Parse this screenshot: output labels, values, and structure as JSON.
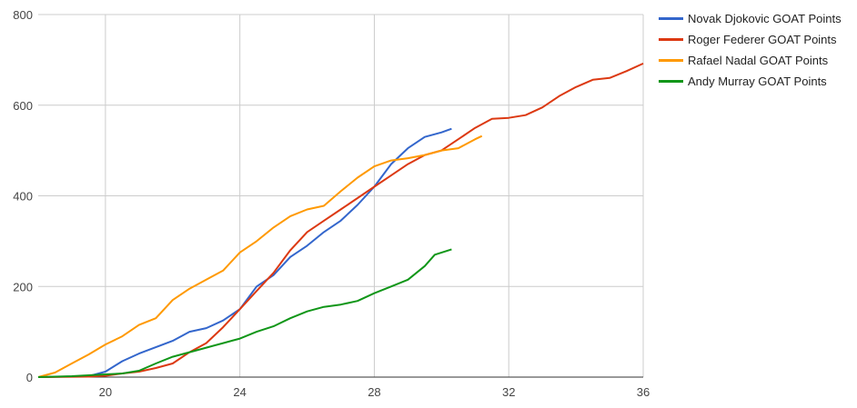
{
  "chart_data": {
    "type": "line",
    "title": "",
    "xlabel": "",
    "ylabel": "",
    "xlim": [
      18,
      36
    ],
    "ylim": [
      0,
      800
    ],
    "x_ticks": [
      20,
      24,
      28,
      32,
      36
    ],
    "y_ticks": [
      0,
      200,
      400,
      600,
      800
    ],
    "x_tick_labels": [
      "20",
      "24",
      "28",
      "32",
      "36"
    ],
    "y_tick_labels": [
      "0",
      "200",
      "400",
      "600",
      "800"
    ],
    "grid": true,
    "legend_position": "right",
    "series": [
      {
        "name": "Novak Djokovic GOAT Points",
        "color": "#3366cc",
        "x": [
          18.0,
          19.5,
          20.0,
          20.5,
          21.0,
          21.5,
          22.0,
          22.5,
          23.0,
          23.5,
          24.0,
          24.5,
          25.0,
          25.5,
          26.0,
          26.5,
          27.0,
          27.5,
          28.0,
          28.5,
          29.0,
          29.5,
          30.0,
          30.3
        ],
        "y": [
          0,
          2,
          12,
          35,
          52,
          66,
          80,
          100,
          108,
          125,
          150,
          200,
          225,
          265,
          290,
          320,
          345,
          380,
          420,
          470,
          505,
          530,
          540,
          548
        ]
      },
      {
        "name": "Roger Federer GOAT Points",
        "color": "#dc3912",
        "x": [
          18.0,
          19.5,
          20.0,
          20.5,
          21.0,
          21.5,
          22.0,
          22.5,
          23.0,
          23.5,
          24.0,
          24.5,
          25.0,
          25.5,
          26.0,
          26.5,
          27.0,
          27.5,
          28.0,
          28.5,
          29.0,
          29.5,
          30.0,
          30.5,
          31.0,
          31.5,
          32.0,
          32.5,
          33.0,
          33.5,
          34.0,
          34.5,
          35.0,
          35.5,
          36.0
        ],
        "y": [
          0,
          1,
          3,
          8,
          12,
          20,
          30,
          55,
          75,
          110,
          150,
          190,
          230,
          280,
          320,
          345,
          370,
          395,
          420,
          445,
          470,
          490,
          500,
          525,
          550,
          570,
          572,
          578,
          595,
          620,
          640,
          656,
          660,
          675,
          692
        ]
      },
      {
        "name": "Rafael Nadal GOAT Points",
        "color": "#ff9900",
        "x": [
          18.0,
          18.5,
          19.0,
          19.5,
          20.0,
          20.5,
          21.0,
          21.5,
          22.0,
          22.5,
          23.0,
          23.5,
          24.0,
          24.5,
          25.0,
          25.5,
          26.0,
          26.5,
          27.0,
          27.5,
          28.0,
          28.5,
          29.0,
          29.5,
          30.0,
          30.5,
          31.0,
          31.2
        ],
        "y": [
          0,
          10,
          30,
          50,
          72,
          90,
          115,
          130,
          170,
          195,
          215,
          235,
          275,
          300,
          330,
          355,
          370,
          378,
          410,
          440,
          465,
          478,
          483,
          490,
          500,
          505,
          525,
          532
        ]
      },
      {
        "name": "Andy Murray GOAT Points",
        "color": "#109618",
        "x": [
          18.0,
          19.0,
          20.0,
          20.5,
          21.0,
          21.5,
          22.0,
          22.5,
          23.0,
          23.5,
          24.0,
          24.5,
          25.0,
          25.5,
          26.0,
          26.5,
          27.0,
          27.5,
          28.0,
          28.5,
          29.0,
          29.5,
          29.8,
          30.3
        ],
        "y": [
          0,
          2,
          6,
          8,
          14,
          30,
          45,
          55,
          65,
          75,
          85,
          100,
          112,
          130,
          145,
          155,
          160,
          168,
          185,
          200,
          215,
          245,
          270,
          282
        ]
      }
    ]
  }
}
